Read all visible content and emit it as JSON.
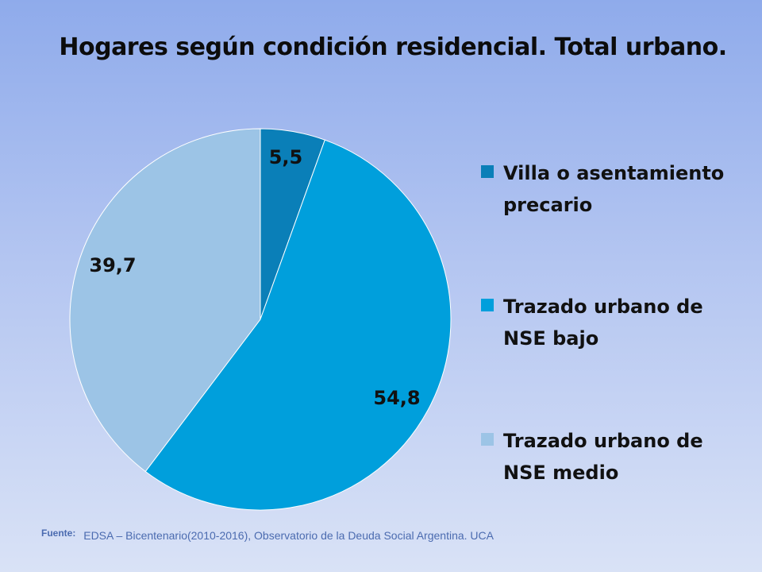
{
  "title": "Hogares según condición residencial. Total urbano.",
  "chart_data": {
    "type": "pie",
    "title": "Hogares según condición residencial. Total urbano.",
    "slices": [
      {
        "label": "Villa o asentamiento precario",
        "value": 5.5,
        "display": "5,5",
        "color": "#0a7fb8"
      },
      {
        "label": "Trazado urbano de NSE bajo",
        "value": 54.8,
        "display": "54,8",
        "color": "#009fdc"
      },
      {
        "label": "Trazado urbano de NSE medio",
        "value": 39.7,
        "display": "39,7",
        "color": "#9cc4e6"
      }
    ],
    "legend_position": "right"
  },
  "legend": {
    "items": [
      {
        "line1": "Villa o asentamiento",
        "line2": "precario",
        "color": "#0a7fb8"
      },
      {
        "line1": "Trazado urbano de",
        "line2": "NSE bajo",
        "color": "#009fdc"
      },
      {
        "line1": "Trazado urbano de",
        "line2": "NSE medio",
        "color": "#9cc4e6"
      }
    ]
  },
  "source": {
    "key": "Fuente:",
    "text": "EDSA – Bicentenario(2010-2016), Observatorio de la Deuda Social Argentina. UCA"
  }
}
